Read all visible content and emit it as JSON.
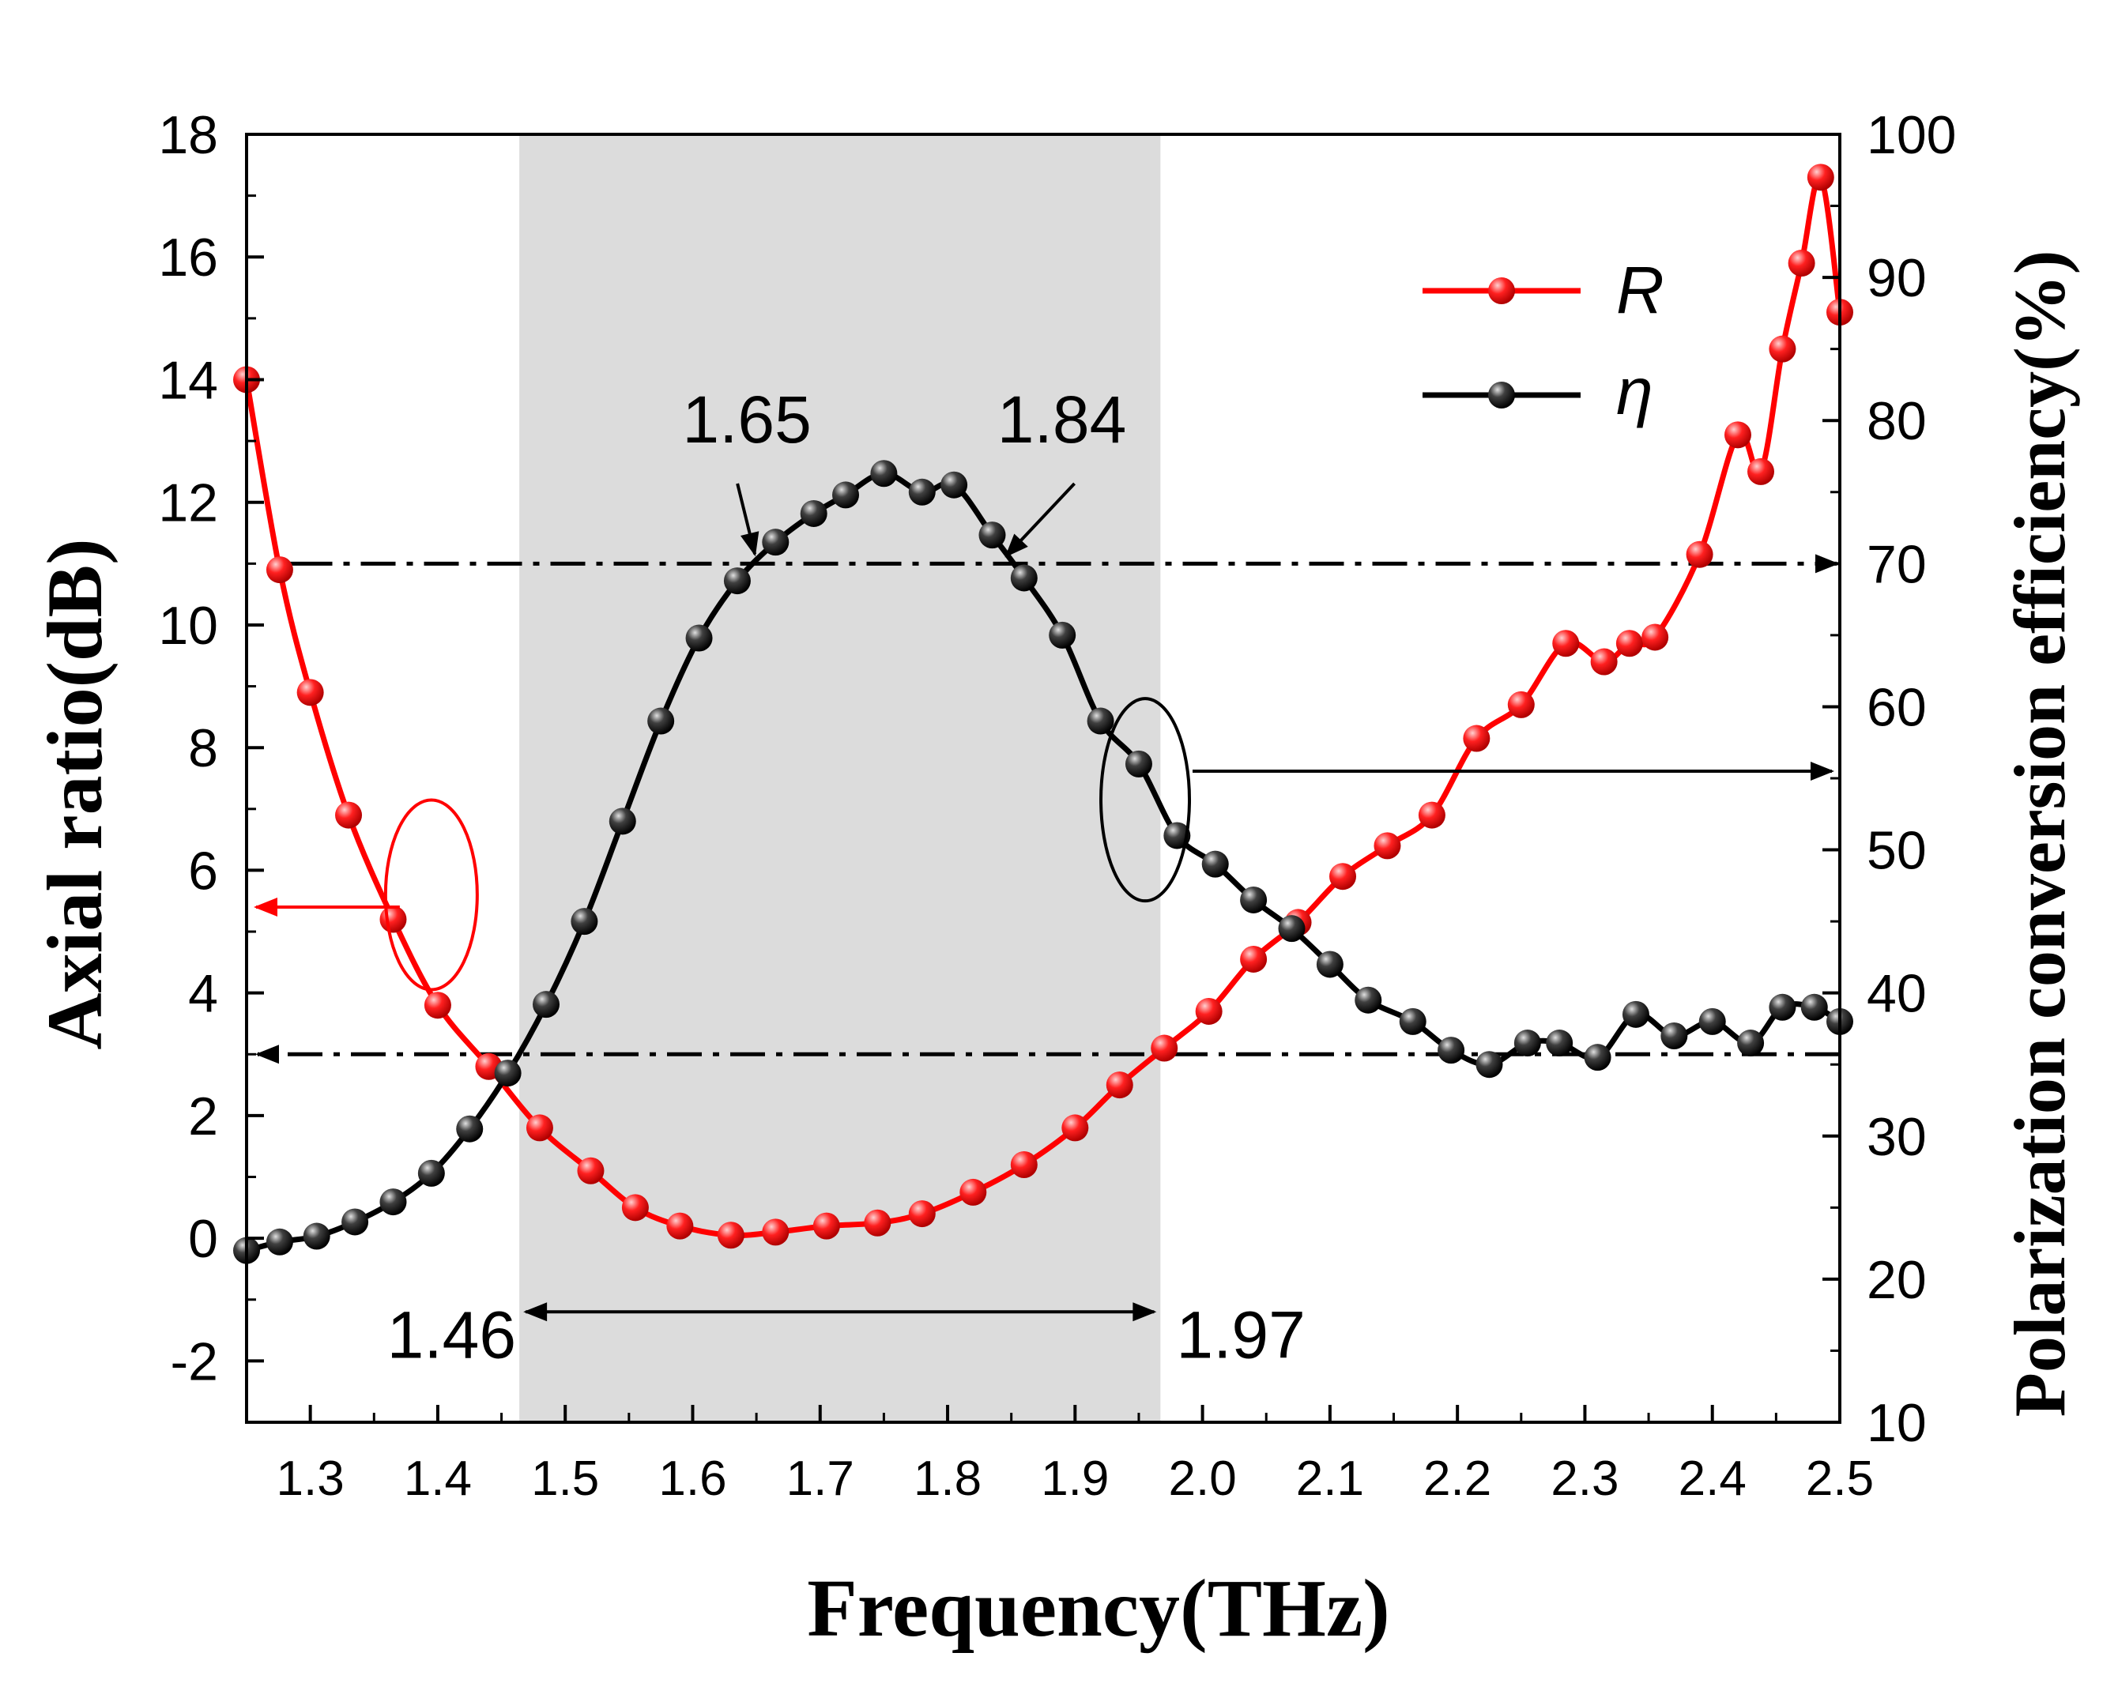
{
  "chart_data": {
    "type": "line",
    "xlabel": "Frequency(THz)",
    "ylabel_left": "Axial ratio(dB)",
    "ylabel_right": "Polarization conversion efficiency(%)",
    "xlim": [
      1.25,
      2.5
    ],
    "ylim_left": [
      -3,
      18
    ],
    "ylim_right": [
      10,
      100
    ],
    "x_ticks": [
      1.3,
      1.4,
      1.5,
      1.6,
      1.7,
      1.8,
      1.9,
      2.0,
      2.1,
      2.2,
      2.3,
      2.4,
      2.5
    ],
    "x_tick_labels": [
      "1.3",
      "1.4",
      "1.5",
      "1.6",
      "1.7",
      "1.8",
      "1.9",
      "2.0",
      "2.1",
      "2.2",
      "2.3",
      "2.4",
      "2.5"
    ],
    "y_left_ticks": [
      -2,
      0,
      2,
      4,
      6,
      8,
      10,
      12,
      14,
      16,
      18
    ],
    "y_left_tick_labels": [
      "-2",
      "0",
      "2",
      "4",
      "6",
      "8",
      "10",
      "12",
      "14",
      "16",
      "18"
    ],
    "y_right_ticks": [
      10,
      20,
      30,
      40,
      50,
      60,
      70,
      80,
      90,
      100
    ],
    "y_right_tick_labels": [
      "10",
      "20",
      "30",
      "40",
      "50",
      "60",
      "70",
      "80",
      "90",
      "100"
    ],
    "legend": [
      "R",
      "η"
    ],
    "legend_position": "top-right",
    "shaded_band": [
      1.464,
      1.967
    ],
    "threshold_left_dB": 3,
    "threshold_right_percent": 70,
    "annotations": [
      {
        "text": "1.65",
        "x": 1.65,
        "y_right": 70
      },
      {
        "text": "1.84",
        "x": 1.84,
        "y_right": 70
      },
      {
        "text": "1.46",
        "x": 1.464
      },
      {
        "text": "1.97",
        "x": 1.967
      }
    ],
    "series": [
      {
        "name": "R",
        "axis": "left",
        "color": "#ff0000",
        "x": [
          1.25,
          1.276,
          1.3,
          1.33,
          1.365,
          1.4,
          1.44,
          1.48,
          1.52,
          1.555,
          1.59,
          1.63,
          1.665,
          1.705,
          1.745,
          1.78,
          1.82,
          1.86,
          1.9,
          1.935,
          1.97,
          2.005,
          2.04,
          2.075,
          2.11,
          2.145,
          2.18,
          2.215,
          2.25,
          2.285,
          2.315,
          2.335,
          2.355,
          2.39,
          2.42,
          2.438,
          2.455,
          2.47,
          2.485,
          2.5
        ],
        "values": [
          14.0,
          10.9,
          8.9,
          6.9,
          5.2,
          3.8,
          2.8,
          1.8,
          1.1,
          0.5,
          0.2,
          0.05,
          0.1,
          0.2,
          0.25,
          0.4,
          0.75,
          1.2,
          1.8,
          2.5,
          3.1,
          3.7,
          4.55,
          5.15,
          5.9,
          6.4,
          6.9,
          8.15,
          8.7,
          9.7,
          9.4,
          9.7,
          9.8,
          11.15,
          13.1,
          12.5,
          14.5,
          15.9,
          17.3,
          15.1
        ]
      },
      {
        "name": "η",
        "axis": "right",
        "color": "#000000",
        "x": [
          1.25,
          1.276,
          1.305,
          1.335,
          1.365,
          1.395,
          1.425,
          1.455,
          1.485,
          1.515,
          1.545,
          1.575,
          1.605,
          1.635,
          1.665,
          1.695,
          1.72,
          1.75,
          1.78,
          1.805,
          1.835,
          1.86,
          1.89,
          1.92,
          1.95,
          1.98,
          2.01,
          2.04,
          2.07,
          2.1,
          2.13,
          2.165,
          2.195,
          2.225,
          2.255,
          2.28,
          2.31,
          2.34,
          2.37,
          2.4,
          2.43,
          2.455,
          2.48,
          2.5
        ],
        "values": [
          22.0,
          22.6,
          23.0,
          24.0,
          25.4,
          27.4,
          30.5,
          34.4,
          39.2,
          45.0,
          52.0,
          59.0,
          64.8,
          68.8,
          71.5,
          73.5,
          74.8,
          76.3,
          75.0,
          75.5,
          72.0,
          69.0,
          65.0,
          59.0,
          56.0,
          51.0,
          49.0,
          46.5,
          44.5,
          42.0,
          39.5,
          38.0,
          36.0,
          35.0,
          36.5,
          36.5,
          35.5,
          38.5,
          37.0,
          38.0,
          36.5,
          39.0,
          39.0,
          38.0
        ]
      }
    ]
  }
}
